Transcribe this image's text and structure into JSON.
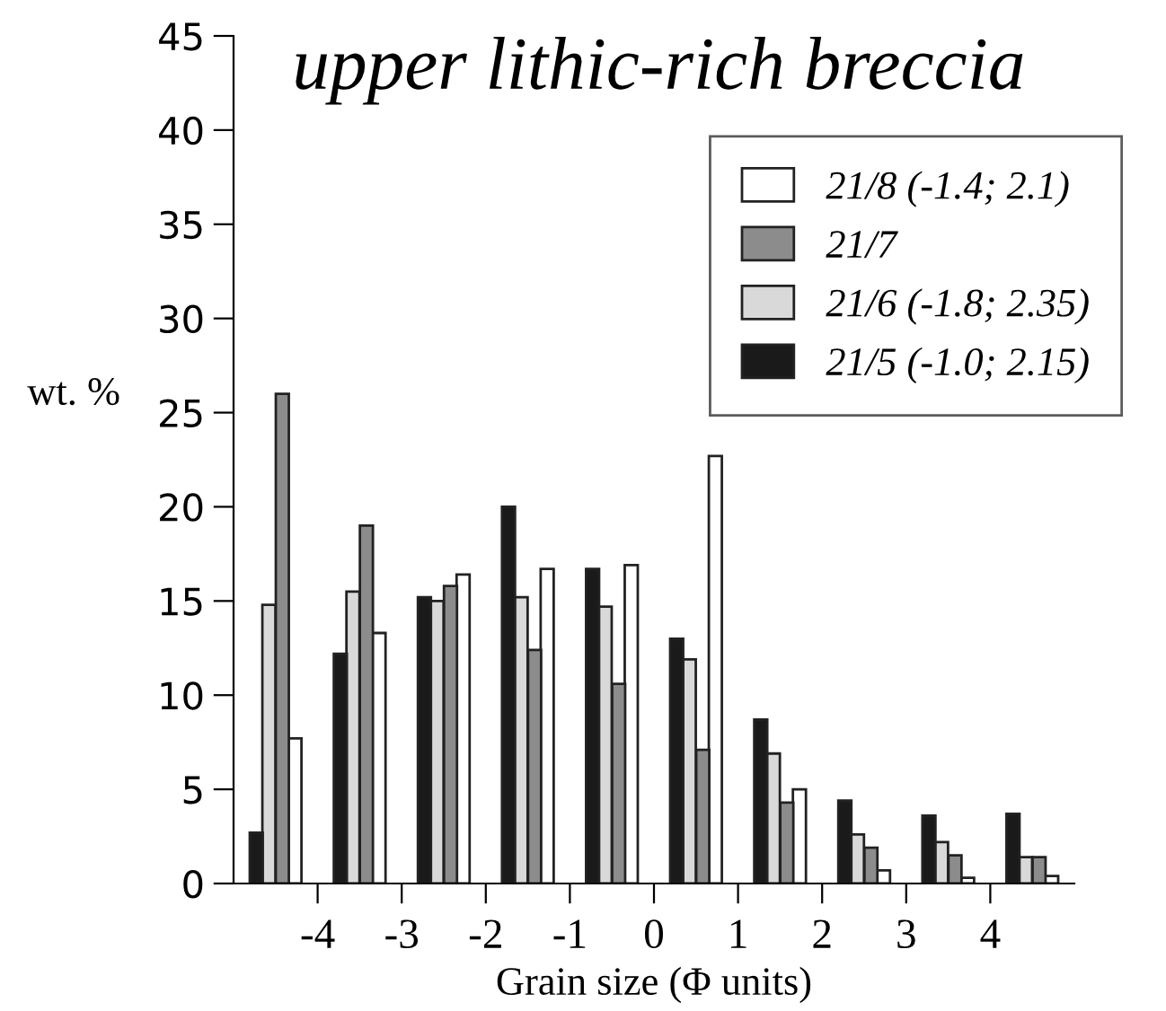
{
  "chart_data": {
    "type": "bar",
    "title": "upper lithic-rich breccia",
    "xlabel": "Grain size (Φ units)",
    "ylabel": "wt. %",
    "xlim": [
      -5,
      5
    ],
    "xticks": [
      -4,
      -3,
      -2,
      -1,
      0,
      1,
      2,
      3,
      4
    ],
    "ylim": [
      0,
      45
    ],
    "yticks": [
      0,
      5,
      10,
      15,
      20,
      25,
      30,
      35,
      40,
      45
    ],
    "grid": false,
    "legend": "top right",
    "series": [
      {
        "name": "21/8 (-1.4; 2.1)",
        "color": "#ffffff",
        "x": [
          -4.27,
          -3.27,
          -2.27,
          -1.27,
          -0.27,
          0.73,
          1.73,
          2.73,
          3.73,
          4.73
        ],
        "values": [
          7.7,
          13.3,
          16.4,
          16.7,
          16.9,
          22.7,
          5.0,
          0.7,
          0.3,
          0.4
        ]
      },
      {
        "name": "21/7",
        "color": "#8c8c8c",
        "x": [
          -4.42,
          -3.42,
          -2.42,
          -1.42,
          -0.42,
          0.58,
          1.58,
          2.58,
          3.58,
          4.58
        ],
        "values": [
          26.0,
          19.0,
          15.8,
          12.4,
          10.6,
          7.1,
          4.3,
          1.9,
          1.5,
          1.4
        ]
      },
      {
        "name": "21/6 (-1.8; 2.35)",
        "color": "#d9d9d9",
        "x": [
          -4.58,
          -3.58,
          -2.58,
          -1.58,
          -0.58,
          0.42,
          1.42,
          2.42,
          3.42,
          4.42
        ],
        "values": [
          14.8,
          15.5,
          15.0,
          15.2,
          14.7,
          11.9,
          6.9,
          2.6,
          2.2,
          1.4
        ]
      },
      {
        "name": "21/5 (-1.0; 2.15)",
        "color": "#1a1a1a",
        "x": [
          -4.73,
          -3.73,
          -2.73,
          -1.73,
          -0.73,
          0.27,
          1.27,
          2.27,
          3.27,
          4.27
        ],
        "values": [
          2.7,
          12.2,
          15.2,
          20.0,
          16.7,
          13.0,
          8.7,
          4.4,
          3.6,
          3.7
        ]
      }
    ]
  }
}
